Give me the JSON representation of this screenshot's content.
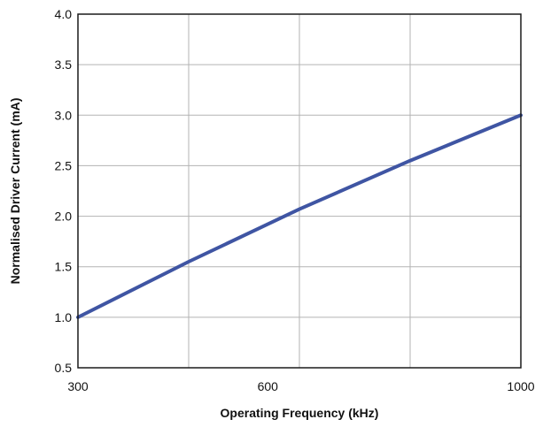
{
  "chart_data": {
    "type": "line",
    "xlabel": "Operating Frequency  (kHz)",
    "ylabel": "Normalised Driver Current (mA)",
    "xlim": [
      300,
      1000
    ],
    "ylim": [
      0.5,
      4.0
    ],
    "x_gridlines": [
      300,
      475,
      650,
      825,
      1000
    ],
    "x_ticks": [
      300,
      600,
      1000
    ],
    "x_tick_labels": [
      "300",
      "600",
      "1000"
    ],
    "y_ticks": [
      0.5,
      1.0,
      1.5,
      2.0,
      2.5,
      3.0,
      3.5,
      4.0
    ],
    "y_tick_labels": [
      "0.5",
      "1.0",
      "1.5",
      "2.0",
      "2.5",
      "3.0",
      "3.5",
      "4.0"
    ],
    "grid": true,
    "line_color": "#3f55a3",
    "series": [
      {
        "x": [
          300,
          475,
          650,
          825,
          1000
        ],
        "y": [
          1.0,
          1.55,
          2.07,
          2.55,
          3.0
        ]
      }
    ]
  }
}
